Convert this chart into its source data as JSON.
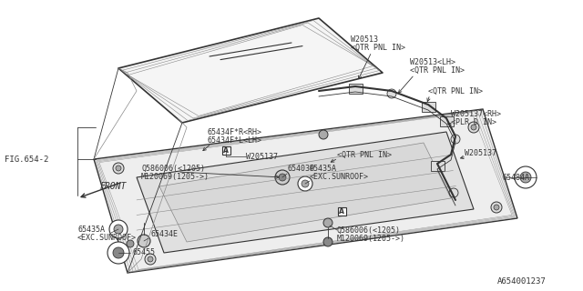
{
  "bg_color": "#ffffff",
  "diagram_id": "A654001237",
  "fig_ref": "FIG.654-2",
  "front_label": "FRONT",
  "dark": "#333333",
  "gray": "#888888",
  "light_gray": "#cccccc"
}
